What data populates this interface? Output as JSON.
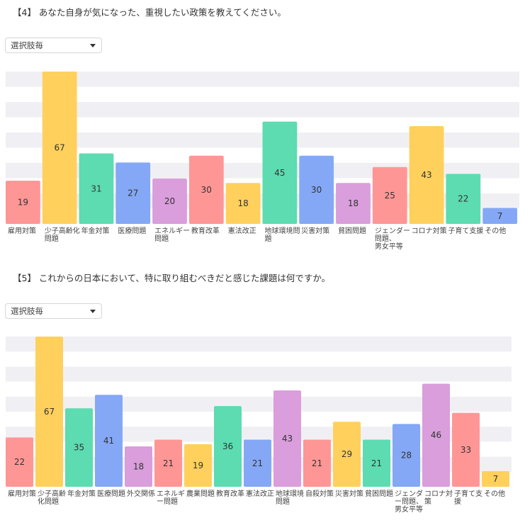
{
  "questions": [
    {
      "title": "【4】 あなた自身が気になった、重視したい政策を教えてください。",
      "select": {
        "value": "選択肢毎"
      }
    },
    {
      "title": "【5】 これからの日本において、特に取り組むべきだと感じた課題は何ですか。",
      "select": {
        "value": "選択肢毎"
      }
    }
  ],
  "palette": [
    "#ff9696",
    "#ffd05c",
    "#5cdcb0",
    "#84a8f5",
    "#d99edb"
  ],
  "chart_data": [
    {
      "type": "bar",
      "categories": [
        "雇用対策",
        "少子高齢化問題",
        "年金対策",
        "医療問題",
        "エネルギー問題",
        "教育改革",
        "憲法改正",
        "地球環境問題",
        "災害対策",
        "貧困問題",
        "ジェンダー問題、男女平等",
        "コロナ対策",
        "子育て支援",
        "その他"
      ],
      "values": [
        19,
        67,
        31,
        27,
        20,
        30,
        18,
        45,
        30,
        18,
        25,
        43,
        22,
        7
      ],
      "ylim": [
        0,
        67
      ],
      "grid": true
    },
    {
      "type": "bar",
      "categories": [
        "雇用対策",
        "少子高齢化問題",
        "年金対策",
        "医療問題",
        "外交関係",
        "エネルギー問題",
        "農業問題",
        "教育改革",
        "憲法改正",
        "地球環境問題",
        "自殺対策",
        "災害対策",
        "貧困問題",
        "ジェンダー問題、男女平等",
        "コロナ対策",
        "子育て支援",
        "その他"
      ],
      "values": [
        22,
        67,
        35,
        41,
        18,
        21,
        19,
        36,
        21,
        43,
        21,
        29,
        21,
        28,
        46,
        33,
        7
      ],
      "ylim": [
        0,
        67
      ],
      "grid": true
    }
  ]
}
